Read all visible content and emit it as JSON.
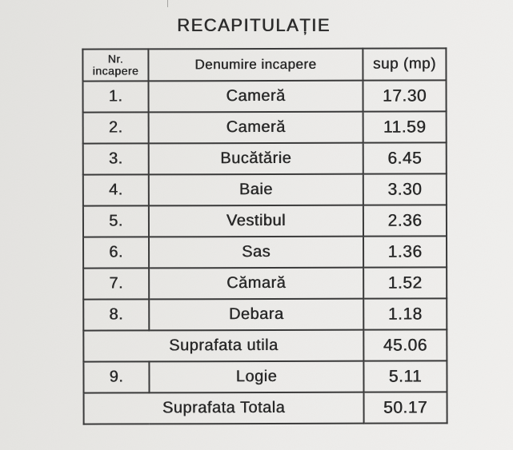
{
  "page": {
    "title": "RECAPITULAȚIE"
  },
  "table": {
    "headers": {
      "col1_line1": "Nr.",
      "col1_line2": "incapere",
      "col2": "Denumire incapere",
      "col3": "sup (mp)"
    },
    "rows": [
      {
        "nr": "1.",
        "name": "Cameră",
        "area": "17.30"
      },
      {
        "nr": "2.",
        "name": "Cameră",
        "area": "11.59"
      },
      {
        "nr": "3.",
        "name": "Bucătărie",
        "area": "6.45"
      },
      {
        "nr": "4.",
        "name": "Baie",
        "area": "3.30"
      },
      {
        "nr": "5.",
        "name": "Vestibul",
        "area": "2.36"
      },
      {
        "nr": "6.",
        "name": "Sas",
        "area": "1.36"
      },
      {
        "nr": "7.",
        "name": "Cămară",
        "area": "1.52"
      },
      {
        "nr": "8.",
        "name": "Debara",
        "area": "1.18"
      },
      {
        "merged": true,
        "name": "Suprafata utila",
        "area": "45.06"
      },
      {
        "nr": "9.",
        "name": "Logie",
        "area": "5.11"
      },
      {
        "merged": true,
        "name": "Suprafata Totala",
        "area": "50.17"
      }
    ]
  },
  "colors": {
    "paper": "#e9e8e5",
    "ink": "#282828",
    "border": "#3a3a3a"
  }
}
